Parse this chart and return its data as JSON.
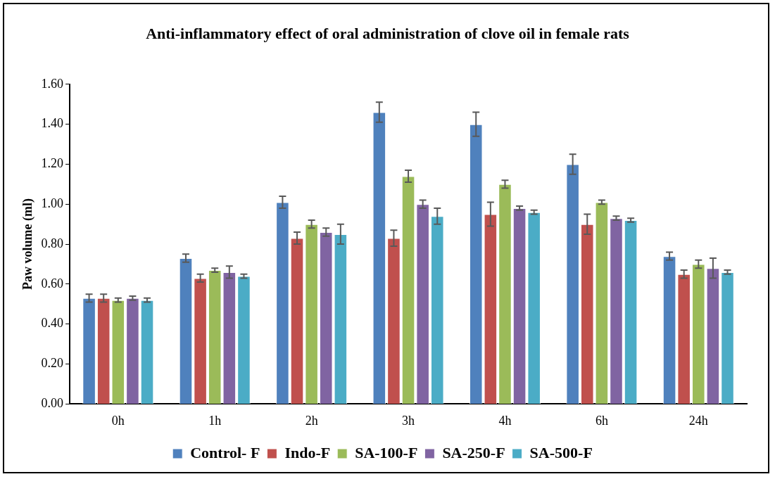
{
  "chart_data": {
    "type": "bar",
    "title": "Anti-inflammatory effect of  oral administration of clove oil  in female rats",
    "ylabel": "Paw volume (ml)",
    "categories": [
      "0h",
      "1h",
      "2h",
      "3h",
      "4h",
      "6h",
      "24h"
    ],
    "series": [
      {
        "name": "Control- F",
        "color": "#4f81bd",
        "values": [
          0.53,
          0.73,
          1.01,
          1.46,
          1.4,
          1.2,
          0.74
        ],
        "errors": [
          0.02,
          0.02,
          0.03,
          0.05,
          0.06,
          0.05,
          0.02
        ]
      },
      {
        "name": "Indo-F",
        "color": "#c0504d",
        "values": [
          0.53,
          0.63,
          0.83,
          0.83,
          0.95,
          0.9,
          0.65
        ],
        "errors": [
          0.02,
          0.02,
          0.03,
          0.04,
          0.06,
          0.05,
          0.02
        ]
      },
      {
        "name": "SA-100-F",
        "color": "#9bbb59",
        "values": [
          0.52,
          0.67,
          0.9,
          1.14,
          1.1,
          1.01,
          0.7
        ],
        "errors": [
          0.01,
          0.01,
          0.02,
          0.03,
          0.02,
          0.01,
          0.02
        ]
      },
      {
        "name": "SA-250-F",
        "color": "#8064a2",
        "values": [
          0.53,
          0.66,
          0.86,
          1.0,
          0.98,
          0.93,
          0.68
        ],
        "errors": [
          0.01,
          0.03,
          0.02,
          0.02,
          0.01,
          0.01,
          0.05
        ]
      },
      {
        "name": "SA-500-F",
        "color": "#4bacc6",
        "values": [
          0.52,
          0.64,
          0.85,
          0.94,
          0.96,
          0.92,
          0.66
        ],
        "errors": [
          0.01,
          0.01,
          0.05,
          0.04,
          0.01,
          0.01,
          0.01
        ]
      }
    ],
    "ylim": [
      0,
      1.6
    ],
    "yticks": [
      {
        "value": 0,
        "label": "0.00"
      },
      {
        "value": 0.2,
        "label": "0.20"
      },
      {
        "value": 0.4,
        "label": "0.40"
      },
      {
        "value": 0.6,
        "label": "0.60"
      },
      {
        "value": 0.8,
        "label": "0.80"
      },
      {
        "value": 1.0,
        "label": "1.00"
      },
      {
        "value": 1.2,
        "label": "1.20"
      },
      {
        "value": 1.4,
        "label": "1.40"
      },
      {
        "value": 1.6,
        "label": "1.60"
      }
    ],
    "grid": false,
    "legend": "bottom"
  }
}
